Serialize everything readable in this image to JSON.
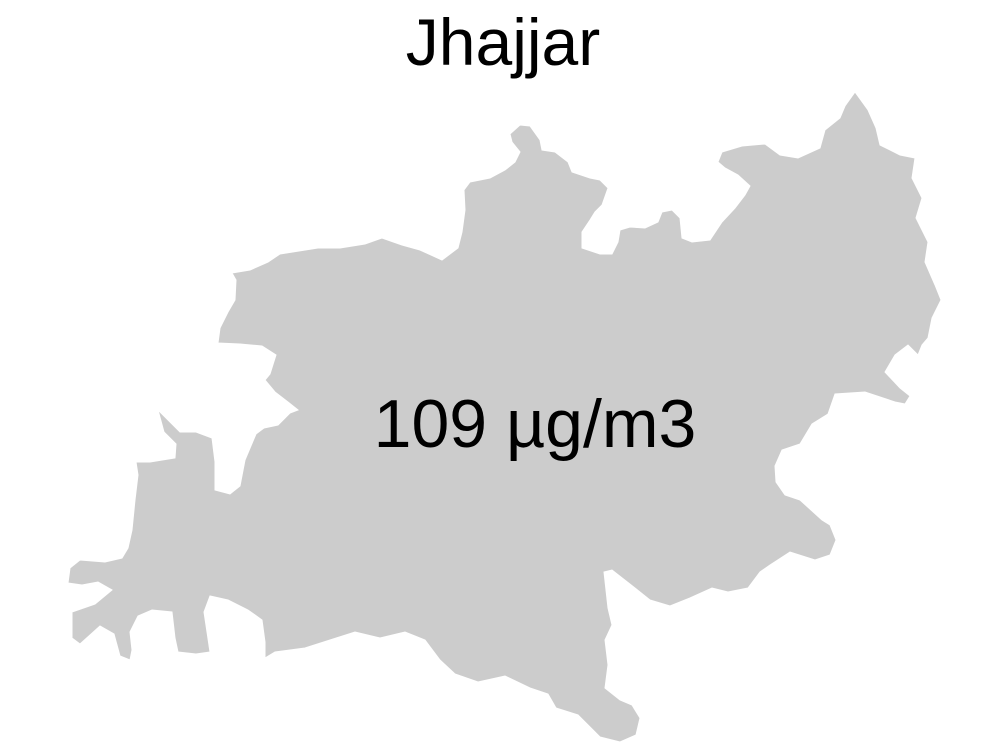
{
  "map": {
    "title": "Jhajjar",
    "region_label": "109 µg/m3",
    "region_fill": "#cccccc",
    "background": "#ffffff"
  }
}
